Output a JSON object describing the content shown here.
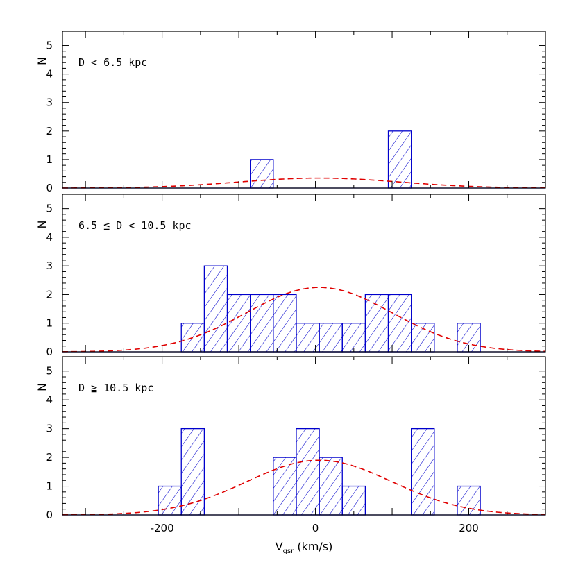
{
  "chart_data": {
    "type": "bar",
    "xlabel_main": "V",
    "xlabel_sub": "gsr",
    "xlabel_units": " (km/s)",
    "ylabel": "N",
    "xlim": [
      -330,
      300
    ],
    "ylim": [
      0,
      5.5
    ],
    "x_ticks": [
      -200,
      0,
      200
    ],
    "y_ticks": [
      0,
      1,
      2,
      3,
      4,
      5
    ],
    "bin_width": 30,
    "colors": {
      "histogram": "#0000cc",
      "gaussian": "#e00000"
    },
    "panels": [
      {
        "label": "D < 6.5 kpc",
        "bins": [
          {
            "x0": -85,
            "x1": -55,
            "count": 1
          },
          {
            "x0": 95,
            "x1": 125,
            "count": 2
          }
        ],
        "gaussian": {
          "amplitude": 0.35,
          "mean": 5,
          "sigma": 105
        }
      },
      {
        "label": "6.5 ≦ D < 10.5 kpc",
        "bins": [
          {
            "x0": -175,
            "x1": -145,
            "count": 1
          },
          {
            "x0": -145,
            "x1": -115,
            "count": 3
          },
          {
            "x0": -115,
            "x1": -85,
            "count": 2
          },
          {
            "x0": -85,
            "x1": -55,
            "count": 2
          },
          {
            "x0": -55,
            "x1": -25,
            "count": 2
          },
          {
            "x0": -25,
            "x1": 5,
            "count": 1
          },
          {
            "x0": 5,
            "x1": 35,
            "count": 1
          },
          {
            "x0": 35,
            "x1": 65,
            "count": 1
          },
          {
            "x0": 65,
            "x1": 95,
            "count": 2
          },
          {
            "x0": 95,
            "x1": 125,
            "count": 2
          },
          {
            "x0": 125,
            "x1": 155,
            "count": 1
          },
          {
            "x0": 185,
            "x1": 215,
            "count": 1
          }
        ],
        "gaussian": {
          "amplitude": 2.25,
          "mean": 5,
          "sigma": 95
        }
      },
      {
        "label": "D ≧ 10.5 kpc",
        "bins": [
          {
            "x0": -205,
            "x1": -175,
            "count": 1
          },
          {
            "x0": -175,
            "x1": -145,
            "count": 3
          },
          {
            "x0": -55,
            "x1": -25,
            "count": 2
          },
          {
            "x0": -25,
            "x1": 5,
            "count": 3
          },
          {
            "x0": 5,
            "x1": 35,
            "count": 2
          },
          {
            "x0": 35,
            "x1": 65,
            "count": 1
          },
          {
            "x0": 125,
            "x1": 155,
            "count": 3
          },
          {
            "x0": 185,
            "x1": 215,
            "count": 1
          }
        ],
        "gaussian": {
          "amplitude": 1.9,
          "mean": 5,
          "sigma": 95
        }
      }
    ]
  }
}
